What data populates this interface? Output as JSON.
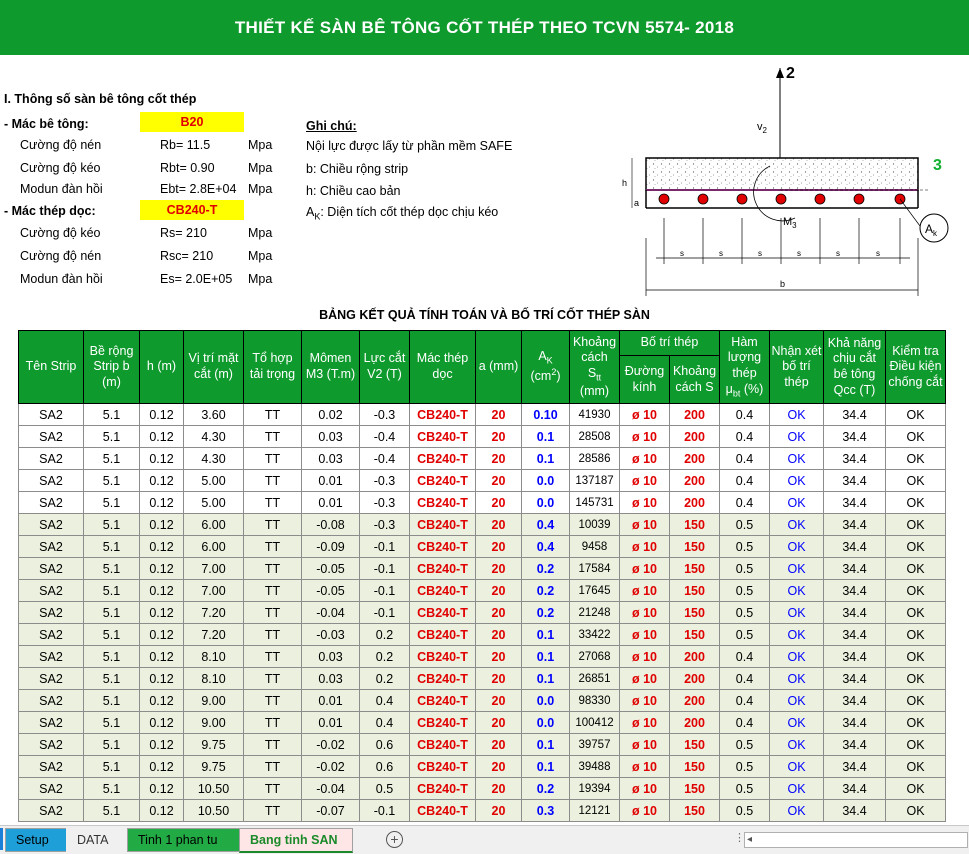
{
  "title": "THIẾT KẾ SÀN BÊ TÔNG CỐT THÉP THEO TCVN 5574- 2018",
  "params": {
    "section_title": "I. Thông số sàn bê tông cốt thép",
    "concrete_label": "- Mác bê tông:",
    "concrete_value": "B20",
    "rb_label": "Cường độ nén",
    "rb_value": "Rb= 11.5",
    "rb_unit": "Mpa",
    "rbt_label": "Cường độ kéo",
    "rbt_value": "Rbt= 0.90",
    "rbt_unit": "Mpa",
    "eb_label": "Modun đàn hồi",
    "eb_value": "Ebt= 2.8E+04",
    "eb_unit": "Mpa",
    "steel_label": "- Mác thép dọc:",
    "steel_value": "CB240-T",
    "rs_label": "Cường độ kéo",
    "rs_value": "Rs= 210",
    "rs_unit": "Mpa",
    "rsc_label": "Cường độ nén",
    "rsc_value": "Rsc= 210",
    "rsc_unit": "Mpa",
    "es_label": "Modun đàn hồi",
    "es_value": "Es= 2.0E+05",
    "es_unit": "Mpa"
  },
  "notes": {
    "title": "Ghi chú:",
    "line1": "Nội lực được lấy từ phần mềm SAFE",
    "line2": "b: Chiều rộng strip",
    "line3": "h: Chiều cao bản",
    "line4_sym": "A",
    "line4_sub": "K",
    "line4_text": ": Diện tích cốt thép dọc chịu kéo"
  },
  "diagram": {
    "axis2": "2",
    "axis3": "3",
    "v2": "v",
    "v2_sub": "2",
    "m3": "M",
    "m3_sub": "3",
    "ak": "A",
    "ak_sub": "k",
    "h": "h",
    "a": "a",
    "s": "s",
    "b": "b"
  },
  "table_title": "BẢNG KẾT QUẢ TÍNH TOÁN VÀ BỐ TRÍ CỐT THÉP SÀN",
  "headers": {
    "strip": "Tên Strip",
    "b": "Bề rộng Strip b (m)",
    "h": "h (m)",
    "pos": "Vị trí mặt cắt (m)",
    "combo": "Tổ hợp tải trọng",
    "m3": "Mômen M3 (T.m)",
    "v2": "Lực cắt V2 (T)",
    "steel": "Mác thép dọc",
    "a": "a (mm)",
    "ak": "A",
    "ak_sub": "K",
    "ak_unit": "(cm",
    "ak_sup": "2",
    "ak_close": ")",
    "stt_top": "Khoảng cách",
    "stt_sym": "S",
    "stt_sub": "tt",
    "stt_unit": "(mm)",
    "layout": "Bố trí thép",
    "dia": "Đường kính",
    "spacing": "Khoảng cách S",
    "mu_top": "Hàm lượng thép",
    "mu_sym": "μ",
    "mu_sub": "bt",
    "mu_unit": " (%)",
    "check": "Nhận xét bố trí thép",
    "shear": "Khả năng chịu cắt bê tông Qcc (T)",
    "cond": "Kiểm tra Điều kiện chống cắt"
  },
  "rows": [
    {
      "strip": "SA2",
      "b": "5.1",
      "h": "0.12",
      "pos": "3.60",
      "combo": "TT",
      "m3": "0.02",
      "v2": "-0.3",
      "steel": "CB240-T",
      "a": "20",
      "ak": "0.10",
      "stt": "41930",
      "dia": "ø 10",
      "s": "200",
      "mu": "0.4",
      "check": "OK",
      "q": "34.4",
      "cond": "OK"
    },
    {
      "strip": "SA2",
      "b": "5.1",
      "h": "0.12",
      "pos": "4.30",
      "combo": "TT",
      "m3": "0.03",
      "v2": "-0.4",
      "steel": "CB240-T",
      "a": "20",
      "ak": "0.1",
      "stt": "28508",
      "dia": "ø 10",
      "s": "200",
      "mu": "0.4",
      "check": "OK",
      "q": "34.4",
      "cond": "OK"
    },
    {
      "strip": "SA2",
      "b": "5.1",
      "h": "0.12",
      "pos": "4.30",
      "combo": "TT",
      "m3": "0.03",
      "v2": "-0.4",
      "steel": "CB240-T",
      "a": "20",
      "ak": "0.1",
      "stt": "28586",
      "dia": "ø 10",
      "s": "200",
      "mu": "0.4",
      "check": "OK",
      "q": "34.4",
      "cond": "OK"
    },
    {
      "strip": "SA2",
      "b": "5.1",
      "h": "0.12",
      "pos": "5.00",
      "combo": "TT",
      "m3": "0.01",
      "v2": "-0.3",
      "steel": "CB240-T",
      "a": "20",
      "ak": "0.0",
      "stt": "137187",
      "dia": "ø 10",
      "s": "200",
      "mu": "0.4",
      "check": "OK",
      "q": "34.4",
      "cond": "OK"
    },
    {
      "strip": "SA2",
      "b": "5.1",
      "h": "0.12",
      "pos": "5.00",
      "combo": "TT",
      "m3": "0.01",
      "v2": "-0.3",
      "steel": "CB240-T",
      "a": "20",
      "ak": "0.0",
      "stt": "145731",
      "dia": "ø 10",
      "s": "200",
      "mu": "0.4",
      "check": "OK",
      "q": "34.4",
      "cond": "OK"
    },
    {
      "strip": "SA2",
      "b": "5.1",
      "h": "0.12",
      "pos": "6.00",
      "combo": "TT",
      "m3": "-0.08",
      "v2": "-0.3",
      "steel": "CB240-T",
      "a": "20",
      "ak": "0.4",
      "stt": "10039",
      "dia": "ø 10",
      "s": "150",
      "mu": "0.5",
      "check": "OK",
      "q": "34.4",
      "cond": "OK"
    },
    {
      "strip": "SA2",
      "b": "5.1",
      "h": "0.12",
      "pos": "6.00",
      "combo": "TT",
      "m3": "-0.09",
      "v2": "-0.1",
      "steel": "CB240-T",
      "a": "20",
      "ak": "0.4",
      "stt": "9458",
      "dia": "ø 10",
      "s": "150",
      "mu": "0.5",
      "check": "OK",
      "q": "34.4",
      "cond": "OK"
    },
    {
      "strip": "SA2",
      "b": "5.1",
      "h": "0.12",
      "pos": "7.00",
      "combo": "TT",
      "m3": "-0.05",
      "v2": "-0.1",
      "steel": "CB240-T",
      "a": "20",
      "ak": "0.2",
      "stt": "17584",
      "dia": "ø 10",
      "s": "150",
      "mu": "0.5",
      "check": "OK",
      "q": "34.4",
      "cond": "OK"
    },
    {
      "strip": "SA2",
      "b": "5.1",
      "h": "0.12",
      "pos": "7.00",
      "combo": "TT",
      "m3": "-0.05",
      "v2": "-0.1",
      "steel": "CB240-T",
      "a": "20",
      "ak": "0.2",
      "stt": "17645",
      "dia": "ø 10",
      "s": "150",
      "mu": "0.5",
      "check": "OK",
      "q": "34.4",
      "cond": "OK"
    },
    {
      "strip": "SA2",
      "b": "5.1",
      "h": "0.12",
      "pos": "7.20",
      "combo": "TT",
      "m3": "-0.04",
      "v2": "-0.1",
      "steel": "CB240-T",
      "a": "20",
      "ak": "0.2",
      "stt": "21248",
      "dia": "ø 10",
      "s": "150",
      "mu": "0.5",
      "check": "OK",
      "q": "34.4",
      "cond": "OK"
    },
    {
      "strip": "SA2",
      "b": "5.1",
      "h": "0.12",
      "pos": "7.20",
      "combo": "TT",
      "m3": "-0.03",
      "v2": "0.2",
      "steel": "CB240-T",
      "a": "20",
      "ak": "0.1",
      "stt": "33422",
      "dia": "ø 10",
      "s": "150",
      "mu": "0.5",
      "check": "OK",
      "q": "34.4",
      "cond": "OK"
    },
    {
      "strip": "SA2",
      "b": "5.1",
      "h": "0.12",
      "pos": "8.10",
      "combo": "TT",
      "m3": "0.03",
      "v2": "0.2",
      "steel": "CB240-T",
      "a": "20",
      "ak": "0.1",
      "stt": "27068",
      "dia": "ø 10",
      "s": "200",
      "mu": "0.4",
      "check": "OK",
      "q": "34.4",
      "cond": "OK"
    },
    {
      "strip": "SA2",
      "b": "5.1",
      "h": "0.12",
      "pos": "8.10",
      "combo": "TT",
      "m3": "0.03",
      "v2": "0.2",
      "steel": "CB240-T",
      "a": "20",
      "ak": "0.1",
      "stt": "26851",
      "dia": "ø 10",
      "s": "200",
      "mu": "0.4",
      "check": "OK",
      "q": "34.4",
      "cond": "OK"
    },
    {
      "strip": "SA2",
      "b": "5.1",
      "h": "0.12",
      "pos": "9.00",
      "combo": "TT",
      "m3": "0.01",
      "v2": "0.4",
      "steel": "CB240-T",
      "a": "20",
      "ak": "0.0",
      "stt": "98330",
      "dia": "ø 10",
      "s": "200",
      "mu": "0.4",
      "check": "OK",
      "q": "34.4",
      "cond": "OK"
    },
    {
      "strip": "SA2",
      "b": "5.1",
      "h": "0.12",
      "pos": "9.00",
      "combo": "TT",
      "m3": "0.01",
      "v2": "0.4",
      "steel": "CB240-T",
      "a": "20",
      "ak": "0.0",
      "stt": "100412",
      "dia": "ø 10",
      "s": "200",
      "mu": "0.4",
      "check": "OK",
      "q": "34.4",
      "cond": "OK"
    },
    {
      "strip": "SA2",
      "b": "5.1",
      "h": "0.12",
      "pos": "9.75",
      "combo": "TT",
      "m3": "-0.02",
      "v2": "0.6",
      "steel": "CB240-T",
      "a": "20",
      "ak": "0.1",
      "stt": "39757",
      "dia": "ø 10",
      "s": "150",
      "mu": "0.5",
      "check": "OK",
      "q": "34.4",
      "cond": "OK"
    },
    {
      "strip": "SA2",
      "b": "5.1",
      "h": "0.12",
      "pos": "9.75",
      "combo": "TT",
      "m3": "-0.02",
      "v2": "0.6",
      "steel": "CB240-T",
      "a": "20",
      "ak": "0.1",
      "stt": "39488",
      "dia": "ø 10",
      "s": "150",
      "mu": "0.5",
      "check": "OK",
      "q": "34.4",
      "cond": "OK"
    },
    {
      "strip": "SA2",
      "b": "5.1",
      "h": "0.12",
      "pos": "10.50",
      "combo": "TT",
      "m3": "-0.04",
      "v2": "0.5",
      "steel": "CB240-T",
      "a": "20",
      "ak": "0.2",
      "stt": "19394",
      "dia": "ø 10",
      "s": "150",
      "mu": "0.5",
      "check": "OK",
      "q": "34.4",
      "cond": "OK"
    },
    {
      "strip": "SA2",
      "b": "5.1",
      "h": "0.12",
      "pos": "10.50",
      "combo": "TT",
      "m3": "-0.07",
      "v2": "-0.1",
      "steel": "CB240-T",
      "a": "20",
      "ak": "0.3",
      "stt": "12121",
      "dia": "ø 10",
      "s": "150",
      "mu": "0.5",
      "check": "OK",
      "q": "34.4",
      "cond": "OK"
    }
  ],
  "tabs": [
    {
      "label": "Setup",
      "bg": "#1e9fd8",
      "color": "#000000"
    },
    {
      "label": "DATA",
      "bg": "#f0f0f0",
      "color": "#333333"
    },
    {
      "label": "Tinh 1 phan tu",
      "bg": "#22aa44",
      "color": "#000000"
    },
    {
      "label": "Bang tinh SAN",
      "bg": "#ffe6e6",
      "color": "#1a8a2a"
    }
  ],
  "colors": {
    "banner": "#0f9a2d",
    "highlight": "#ffff00",
    "value_red": "#e00000",
    "value_blue": "#0000ff",
    "alt_row": "#ebf1de"
  }
}
